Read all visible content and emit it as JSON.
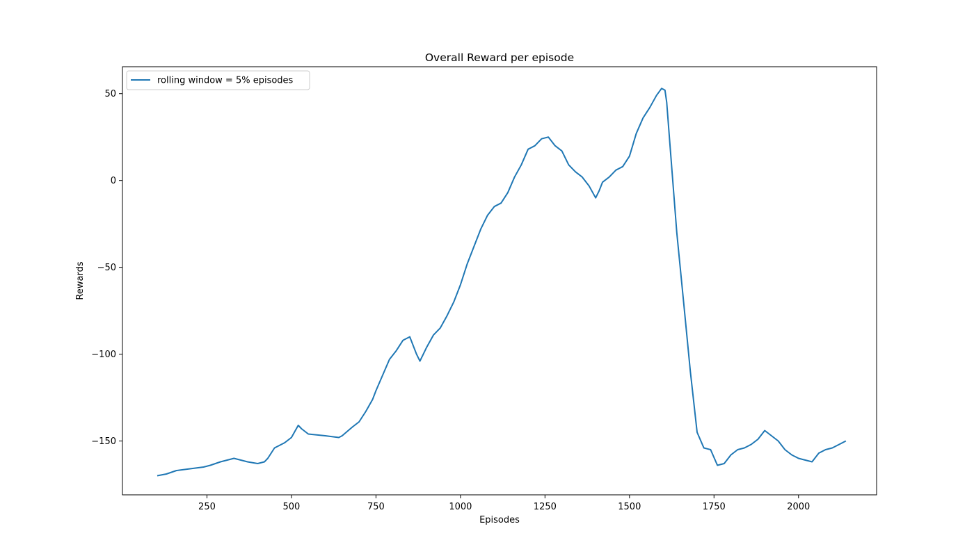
{
  "chart_data": {
    "type": "line",
    "title": "Overall Reward per episode",
    "xlabel": "Episodes",
    "ylabel": "Rewards",
    "xlim": [
      0,
      2231
    ],
    "ylim": [
      -181,
      65.5
    ],
    "xticks": [
      250,
      500,
      750,
      1000,
      1250,
      1500,
      1750,
      2000
    ],
    "yticks": [
      50,
      0,
      -50,
      -100,
      -150
    ],
    "ytick_labels": [
      "50",
      "0",
      "−50",
      "−100",
      "−150"
    ],
    "grid": false,
    "legend": {
      "placement": "upper-left"
    },
    "series": [
      {
        "name": "rolling window =  5% episodes",
        "color": "#1f77b4",
        "x": [
          103,
          130,
          160,
          200,
          240,
          260,
          290,
          330,
          350,
          370,
          400,
          420,
          430,
          450,
          480,
          500,
          520,
          530,
          550,
          600,
          640,
          650,
          680,
          700,
          720,
          740,
          750,
          770,
          790,
          810,
          830,
          850,
          870,
          880,
          900,
          920,
          940,
          960,
          980,
          1000,
          1020,
          1040,
          1060,
          1080,
          1100,
          1120,
          1140,
          1160,
          1180,
          1200,
          1220,
          1240,
          1260,
          1280,
          1300,
          1320,
          1340,
          1360,
          1380,
          1400,
          1410,
          1420,
          1440,
          1460,
          1480,
          1500,
          1520,
          1540,
          1560,
          1580,
          1595,
          1605,
          1610,
          1620,
          1640,
          1660,
          1680,
          1700,
          1720,
          1740,
          1760,
          1780,
          1800,
          1820,
          1840,
          1860,
          1880,
          1900,
          1920,
          1940,
          1960,
          1980,
          2000,
          2020,
          2040,
          2060,
          2080,
          2100,
          2120,
          2140
        ],
        "y": [
          -170,
          -169,
          -167,
          -166,
          -165,
          -164,
          -162,
          -160,
          -161,
          -162,
          -163,
          -162,
          -160,
          -154,
          -151,
          -148,
          -141,
          -143,
          -146,
          -147,
          -148,
          -147,
          -142,
          -139,
          -133,
          -126,
          -121,
          -112,
          -103,
          -98,
          -92,
          -90,
          -100,
          -104,
          -96,
          -89,
          -85,
          -78,
          -70,
          -60,
          -48,
          -38,
          -28,
          -20,
          -15,
          -13,
          -7,
          2,
          9,
          18,
          20,
          24,
          25,
          20,
          17,
          9,
          5,
          2,
          -3,
          -10,
          -6,
          -1,
          2,
          6,
          8,
          14,
          27,
          36,
          42,
          49,
          53,
          52,
          45,
          20,
          -30,
          -70,
          -110,
          -145,
          -154,
          -155,
          -164,
          -163,
          -158,
          -155,
          -154,
          -152,
          -149,
          -144,
          -147,
          -150,
          -155,
          -158,
          -160,
          -161,
          -162,
          -157,
          -155,
          -154,
          -152,
          -150
        ]
      }
    ]
  }
}
